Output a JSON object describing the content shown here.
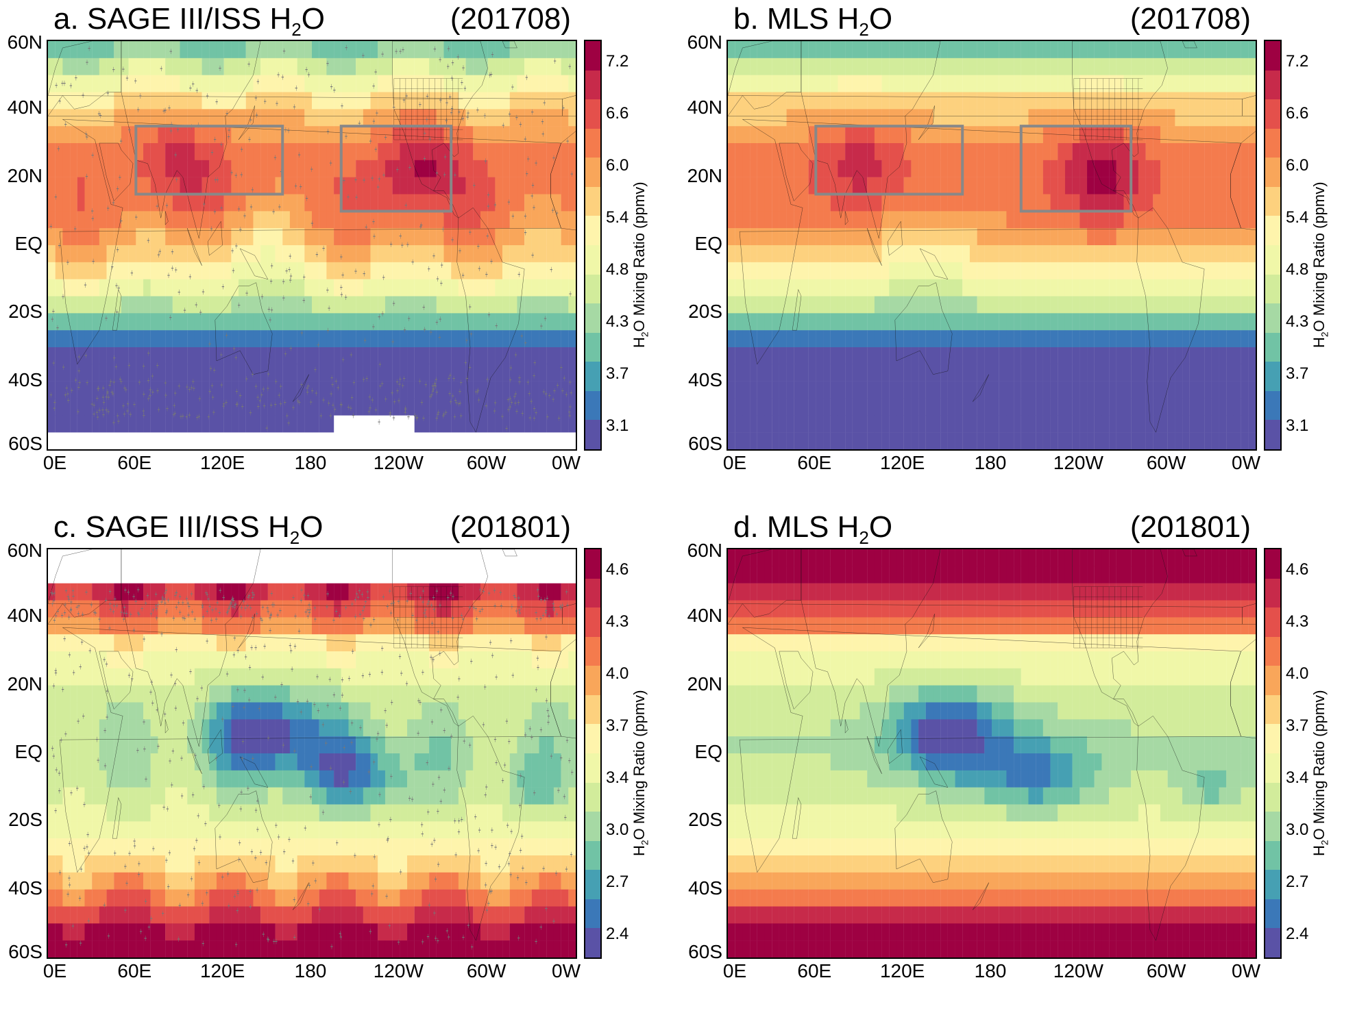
{
  "chart_data": [
    {
      "type": "heatmap",
      "panel": "a",
      "label": "a.",
      "title_main": "SAGE III/ISS H",
      "title_sub": "2",
      "title_tail": "O",
      "date": "(201708)",
      "colorbar_label_a": "H",
      "colorbar_label_sub": "2",
      "colorbar_label_b": "O Mixing Ratio  (ppmv)",
      "colorbar_ticks": [
        "7.2",
        "6.6",
        "6.0",
        "5.4",
        "4.8",
        "4.3",
        "3.7",
        "3.1"
      ],
      "x_ticks": [
        "0E",
        "60E",
        "120E",
        "180",
        "120W",
        "60W",
        "0W"
      ],
      "y_ticks": [
        "60N",
        "40N",
        "20N",
        "EQ",
        "20S",
        "40S",
        "60S"
      ],
      "boxes": [
        {
          "lon": [
            60,
            160
          ],
          "lat": [
            15,
            35
          ]
        },
        {
          "lon": [
            200,
            275
          ],
          "lat": [
            10,
            35
          ]
        }
      ],
      "sample_points": true
    },
    {
      "type": "heatmap",
      "panel": "b",
      "label": "b.",
      "title_main": "MLS H",
      "title_sub": "2",
      "title_tail": "O",
      "date": "(201708)",
      "colorbar_label_a": "H",
      "colorbar_label_sub": "2",
      "colorbar_label_b": "O Mixing Ratio  (ppmv)",
      "colorbar_ticks": [
        "7.2",
        "6.6",
        "6.0",
        "5.4",
        "4.8",
        "4.3",
        "3.7",
        "3.1"
      ],
      "x_ticks": [
        "0E",
        "60E",
        "120E",
        "180",
        "120W",
        "60W",
        "0W"
      ],
      "y_ticks": [
        "60N",
        "40N",
        "20N",
        "EQ",
        "20S",
        "40S",
        "60S"
      ],
      "boxes": [
        {
          "lon": [
            60,
            160
          ],
          "lat": [
            15,
            35
          ]
        },
        {
          "lon": [
            200,
            275
          ],
          "lat": [
            10,
            35
          ]
        }
      ],
      "sample_points": false
    },
    {
      "type": "heatmap",
      "panel": "c",
      "label": "c.",
      "title_main": "SAGE III/ISS H",
      "title_sub": "2",
      "title_tail": "O",
      "date": "(201801)",
      "colorbar_label_a": "H",
      "colorbar_label_sub": "2",
      "colorbar_label_b": "O Mixing Ratio  (ppmv)",
      "colorbar_ticks": [
        "4.6",
        "4.3",
        "4.0",
        "3.7",
        "3.4",
        "3.0",
        "2.7",
        "2.4"
      ],
      "x_ticks": [
        "0E",
        "60E",
        "120E",
        "180",
        "120W",
        "60W",
        "0W"
      ],
      "y_ticks": [
        "60N",
        "40N",
        "20N",
        "EQ",
        "20S",
        "40S",
        "60S"
      ],
      "boxes": [],
      "sample_points": true
    },
    {
      "type": "heatmap",
      "panel": "d",
      "label": "d.",
      "title_main": "MLS H",
      "title_sub": "2",
      "title_tail": "O",
      "date": "(201801)",
      "colorbar_label_a": "H",
      "colorbar_label_sub": "2",
      "colorbar_label_b": "O Mixing Ratio  (ppmv)",
      "colorbar_ticks": [
        "4.6",
        "4.3",
        "4.0",
        "3.7",
        "3.4",
        "3.0",
        "2.7",
        "2.4"
      ],
      "x_ticks": [
        "0E",
        "60E",
        "120E",
        "180",
        "120W",
        "60W",
        "0W"
      ],
      "y_ticks": [
        "60N",
        "40N",
        "20N",
        "EQ",
        "20S",
        "40S",
        "60S"
      ],
      "boxes": [],
      "sample_points": false
    }
  ],
  "colors": {
    "scale": [
      "#9e0142",
      "#c72a4a",
      "#e4504b",
      "#f47b4d",
      "#f9a65a",
      "#fdd17e",
      "#fef4ac",
      "#f0f7a8",
      "#d2ec9b",
      "#a6d9a4",
      "#71c3a5",
      "#46a0b3",
      "#3b78b8",
      "#5a52a6"
    ],
    "box": "#888888",
    "plus": "#777777"
  }
}
